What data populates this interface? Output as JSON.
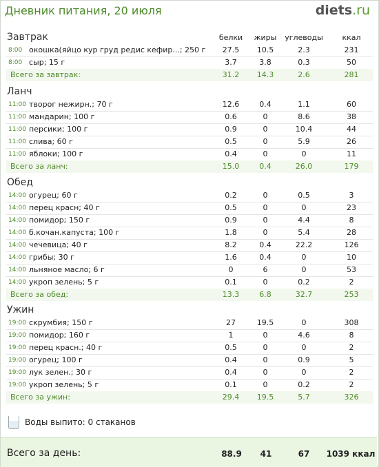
{
  "header": {
    "title": "Дневник питания, 20 июля",
    "logo_main": "diets",
    "logo_suffix": ".ru"
  },
  "columns": {
    "protein": "белки",
    "fat": "жиры",
    "carbs": "углеводы",
    "kcal": "ккал"
  },
  "meals": [
    {
      "title": "Завтрак",
      "items": [
        {
          "time": "8:00",
          "name": "окошка(яйцо кур груд редис кефир...; 250 г",
          "p": "27.5",
          "f": "10.5",
          "c": "2.3",
          "k": "231"
        },
        {
          "time": "8:00",
          "name": "сыр; 15 г",
          "p": "3.7",
          "f": "3.8",
          "c": "0.3",
          "k": "50"
        }
      ],
      "total": {
        "label": "Всего за завтрак:",
        "p": "31.2",
        "f": "14.3",
        "c": "2.6",
        "k": "281"
      }
    },
    {
      "title": "Ланч",
      "items": [
        {
          "time": "11:00",
          "name": "творог нежирн.; 70 г",
          "p": "12.6",
          "f": "0.4",
          "c": "1.1",
          "k": "60"
        },
        {
          "time": "11:00",
          "name": "мандарин; 100 г",
          "p": "0.6",
          "f": "0",
          "c": "8.6",
          "k": "38"
        },
        {
          "time": "11:00",
          "name": "персики; 100 г",
          "p": "0.9",
          "f": "0",
          "c": "10.4",
          "k": "44"
        },
        {
          "time": "11:00",
          "name": "слива; 60 г",
          "p": "0.5",
          "f": "0",
          "c": "5.9",
          "k": "26"
        },
        {
          "time": "11:00",
          "name": "яблоки; 100 г",
          "p": "0.4",
          "f": "0",
          "c": "0",
          "k": "11"
        }
      ],
      "total": {
        "label": "Всего за ланч:",
        "p": "15.0",
        "f": "0.4",
        "c": "26.0",
        "k": "179"
      }
    },
    {
      "title": "Обед",
      "items": [
        {
          "time": "14:00",
          "name": "огурец; 60 г",
          "p": "0.2",
          "f": "0",
          "c": "0.5",
          "k": "3"
        },
        {
          "time": "14:00",
          "name": "перец красн; 40 г",
          "p": "0.5",
          "f": "0",
          "c": "0",
          "k": "23"
        },
        {
          "time": "14:00",
          "name": "помидор; 150 г",
          "p": "0.9",
          "f": "0",
          "c": "4.4",
          "k": "8"
        },
        {
          "time": "14:00",
          "name": "б.кочан.капуста; 100 г",
          "p": "1.8",
          "f": "0",
          "c": "5.4",
          "k": "28"
        },
        {
          "time": "14:00",
          "name": "чечевица; 40 г",
          "p": "8.2",
          "f": "0.4",
          "c": "22.2",
          "k": "126"
        },
        {
          "time": "14:00",
          "name": "грибы; 30 г",
          "p": "1.6",
          "f": "0.4",
          "c": "0",
          "k": "10"
        },
        {
          "time": "14:00",
          "name": "льняное масло; 6 г",
          "p": "0",
          "f": "6",
          "c": "0",
          "k": "53"
        },
        {
          "time": "14:00",
          "name": "укроп зелень; 5 г",
          "p": "0.1",
          "f": "0",
          "c": "0.2",
          "k": "2"
        }
      ],
      "total": {
        "label": "Всего за обед:",
        "p": "13.3",
        "f": "6.8",
        "c": "32.7",
        "k": "253"
      }
    },
    {
      "title": "Ужин",
      "items": [
        {
          "time": "19:00",
          "name": "скрумбия; 150 г",
          "p": "27",
          "f": "19.5",
          "c": "0",
          "k": "308"
        },
        {
          "time": "19:00",
          "name": "помидор; 160 г",
          "p": "1",
          "f": "0",
          "c": "4.6",
          "k": "8"
        },
        {
          "time": "19:00",
          "name": "перец красн.; 40 г",
          "p": "0.5",
          "f": "0",
          "c": "0",
          "k": "2"
        },
        {
          "time": "19:00",
          "name": "огурец; 100 г",
          "p": "0.4",
          "f": "0",
          "c": "0.9",
          "k": "5"
        },
        {
          "time": "19:00",
          "name": "лук зелен.; 30 г",
          "p": "0.4",
          "f": "0",
          "c": "0",
          "k": "2"
        },
        {
          "time": "19:00",
          "name": "укроп зелень; 5 г",
          "p": "0.1",
          "f": "0",
          "c": "0.2",
          "k": "2"
        }
      ],
      "total": {
        "label": "Всего за ужин:",
        "p": "29.4",
        "f": "19.5",
        "c": "5.7",
        "k": "326"
      }
    }
  ],
  "water": {
    "text": "Воды выпито: 0 стаканов",
    "icon": "glass-icon"
  },
  "day_total": {
    "label": "Всего за день:",
    "p": "88.9",
    "f": "41",
    "c": "67",
    "k": "1039 ккал"
  },
  "colors": {
    "accent": "#4e8a2a",
    "total_bg": "#f2f8ee",
    "day_bg": "#eaf5e2"
  }
}
